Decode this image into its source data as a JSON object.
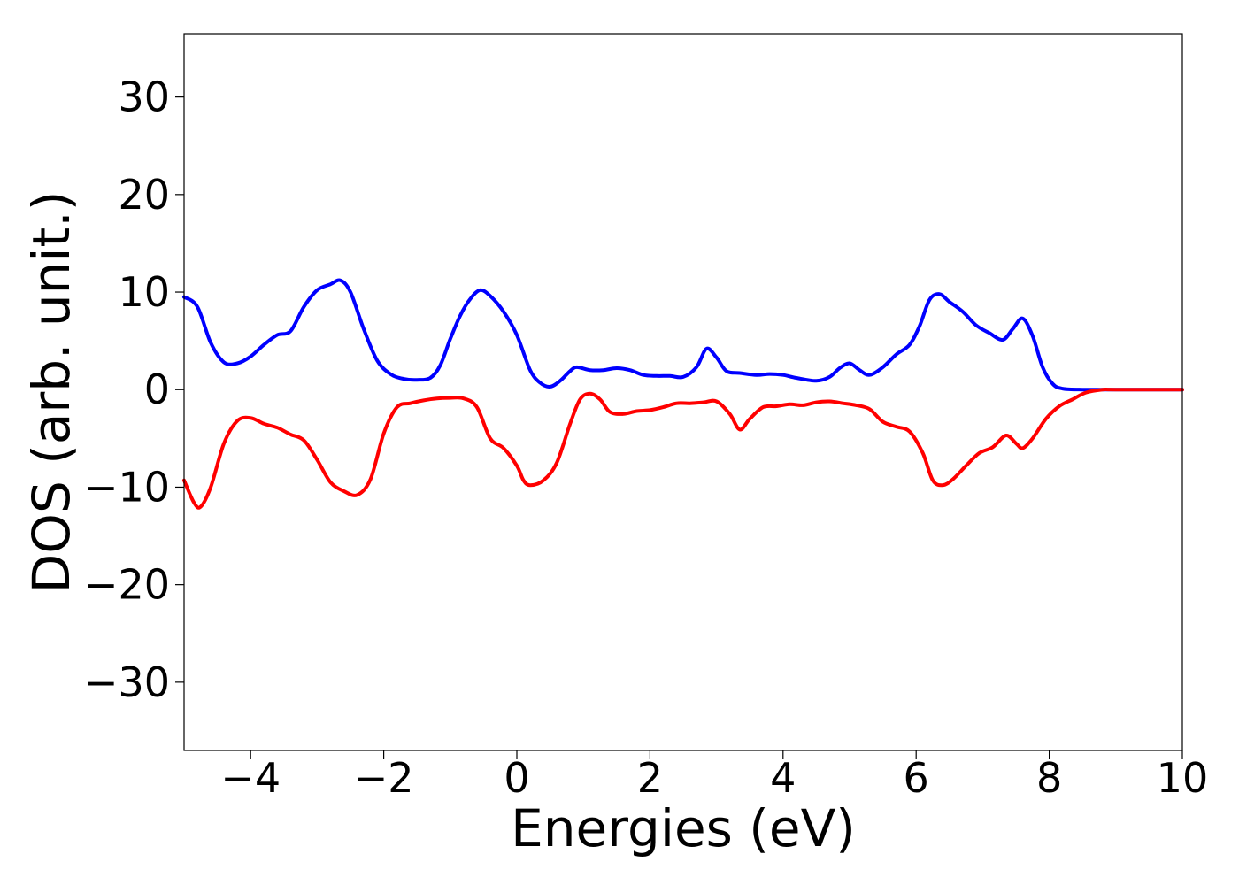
{
  "chart_data": {
    "type": "line",
    "title": "",
    "xlabel": "Energies (eV)",
    "ylabel": "DOS (arb. unit.)",
    "xlim": [
      -5,
      10
    ],
    "ylim": [
      -37,
      36.5
    ],
    "grid": false,
    "legend": "none",
    "x_ticks": [
      -4,
      -2,
      0,
      2,
      4,
      6,
      8,
      10
    ],
    "x_tick_labels": [
      "−4",
      "−2",
      "0",
      "2",
      "4",
      "6",
      "8",
      "10"
    ],
    "y_ticks": [
      30,
      20,
      10,
      0,
      -10,
      -20,
      -30
    ],
    "y_tick_labels": [
      "30",
      "20",
      "10",
      "0",
      "−10",
      "−20",
      "−30"
    ],
    "series": [
      {
        "color": "#0000ff",
        "points": [
          [
            -5.0,
            9.5
          ],
          [
            -4.8,
            8.5
          ],
          [
            -4.6,
            4.8
          ],
          [
            -4.4,
            2.8
          ],
          [
            -4.2,
            2.7
          ],
          [
            -4.0,
            3.4
          ],
          [
            -3.8,
            4.6
          ],
          [
            -3.6,
            5.6
          ],
          [
            -3.4,
            6.0
          ],
          [
            -3.2,
            8.5
          ],
          [
            -3.0,
            10.2
          ],
          [
            -2.8,
            10.8
          ],
          [
            -2.65,
            11.2
          ],
          [
            -2.5,
            10.0
          ],
          [
            -2.3,
            6.2
          ],
          [
            -2.1,
            3.0
          ],
          [
            -1.9,
            1.6
          ],
          [
            -1.7,
            1.1
          ],
          [
            -1.5,
            1.0
          ],
          [
            -1.3,
            1.2
          ],
          [
            -1.15,
            2.5
          ],
          [
            -1.0,
            5.2
          ],
          [
            -0.85,
            7.6
          ],
          [
            -0.7,
            9.3
          ],
          [
            -0.55,
            10.2
          ],
          [
            -0.4,
            9.6
          ],
          [
            -0.2,
            8.0
          ],
          [
            0.0,
            5.6
          ],
          [
            0.2,
            2.0
          ],
          [
            0.35,
            0.7
          ],
          [
            0.5,
            0.3
          ],
          [
            0.65,
            0.9
          ],
          [
            0.8,
            1.9
          ],
          [
            0.9,
            2.3
          ],
          [
            1.1,
            2.0
          ],
          [
            1.3,
            2.0
          ],
          [
            1.5,
            2.2
          ],
          [
            1.7,
            2.0
          ],
          [
            1.9,
            1.5
          ],
          [
            2.1,
            1.4
          ],
          [
            2.3,
            1.4
          ],
          [
            2.5,
            1.3
          ],
          [
            2.7,
            2.3
          ],
          [
            2.85,
            4.2
          ],
          [
            3.0,
            3.3
          ],
          [
            3.15,
            1.9
          ],
          [
            3.35,
            1.7
          ],
          [
            3.6,
            1.5
          ],
          [
            3.8,
            1.6
          ],
          [
            4.0,
            1.5
          ],
          [
            4.2,
            1.2
          ],
          [
            4.5,
            0.9
          ],
          [
            4.7,
            1.3
          ],
          [
            4.85,
            2.2
          ],
          [
            5.0,
            2.7
          ],
          [
            5.15,
            2.0
          ],
          [
            5.3,
            1.5
          ],
          [
            5.5,
            2.3
          ],
          [
            5.7,
            3.6
          ],
          [
            5.9,
            4.6
          ],
          [
            6.05,
            6.5
          ],
          [
            6.2,
            9.2
          ],
          [
            6.35,
            9.8
          ],
          [
            6.5,
            9.0
          ],
          [
            6.7,
            8.0
          ],
          [
            6.9,
            6.6
          ],
          [
            7.1,
            5.8
          ],
          [
            7.3,
            5.1
          ],
          [
            7.45,
            6.2
          ],
          [
            7.6,
            7.3
          ],
          [
            7.75,
            5.5
          ],
          [
            7.9,
            2.3
          ],
          [
            8.05,
            0.6
          ],
          [
            8.2,
            0.1
          ],
          [
            8.5,
            0.0
          ],
          [
            9.0,
            0.0
          ],
          [
            10.0,
            0.0
          ]
        ]
      },
      {
        "color": "#ff0000",
        "points": [
          [
            -5.0,
            -9.3
          ],
          [
            -4.85,
            -11.6
          ],
          [
            -4.75,
            -12.0
          ],
          [
            -4.6,
            -10.0
          ],
          [
            -4.4,
            -5.5
          ],
          [
            -4.2,
            -3.2
          ],
          [
            -4.0,
            -2.9
          ],
          [
            -3.8,
            -3.5
          ],
          [
            -3.6,
            -3.9
          ],
          [
            -3.4,
            -4.6
          ],
          [
            -3.2,
            -5.2
          ],
          [
            -3.0,
            -7.2
          ],
          [
            -2.8,
            -9.5
          ],
          [
            -2.6,
            -10.4
          ],
          [
            -2.4,
            -10.8
          ],
          [
            -2.2,
            -9.2
          ],
          [
            -2.0,
            -4.5
          ],
          [
            -1.8,
            -1.8
          ],
          [
            -1.6,
            -1.4
          ],
          [
            -1.4,
            -1.1
          ],
          [
            -1.2,
            -0.9
          ],
          [
            -1.0,
            -0.85
          ],
          [
            -0.8,
            -0.9
          ],
          [
            -0.6,
            -1.8
          ],
          [
            -0.4,
            -5.0
          ],
          [
            -0.2,
            -6.0
          ],
          [
            0.0,
            -7.8
          ],
          [
            0.1,
            -9.3
          ],
          [
            0.2,
            -9.8
          ],
          [
            0.4,
            -9.3
          ],
          [
            0.6,
            -7.5
          ],
          [
            0.8,
            -3.5
          ],
          [
            0.95,
            -1.0
          ],
          [
            1.1,
            -0.4
          ],
          [
            1.25,
            -1.0
          ],
          [
            1.4,
            -2.3
          ],
          [
            1.6,
            -2.5
          ],
          [
            1.8,
            -2.2
          ],
          [
            2.0,
            -2.1
          ],
          [
            2.2,
            -1.8
          ],
          [
            2.4,
            -1.4
          ],
          [
            2.6,
            -1.4
          ],
          [
            2.8,
            -1.3
          ],
          [
            3.0,
            -1.2
          ],
          [
            3.2,
            -2.5
          ],
          [
            3.35,
            -4.1
          ],
          [
            3.5,
            -3.0
          ],
          [
            3.7,
            -1.8
          ],
          [
            3.9,
            -1.7
          ],
          [
            4.1,
            -1.5
          ],
          [
            4.3,
            -1.6
          ],
          [
            4.5,
            -1.3
          ],
          [
            4.7,
            -1.2
          ],
          [
            4.9,
            -1.4
          ],
          [
            5.1,
            -1.6
          ],
          [
            5.3,
            -2.0
          ],
          [
            5.5,
            -3.3
          ],
          [
            5.7,
            -3.8
          ],
          [
            5.9,
            -4.3
          ],
          [
            6.1,
            -6.5
          ],
          [
            6.25,
            -9.3
          ],
          [
            6.4,
            -9.8
          ],
          [
            6.55,
            -9.2
          ],
          [
            6.75,
            -7.8
          ],
          [
            6.95,
            -6.5
          ],
          [
            7.15,
            -5.9
          ],
          [
            7.35,
            -4.7
          ],
          [
            7.5,
            -5.5
          ],
          [
            7.6,
            -6.0
          ],
          [
            7.75,
            -5.0
          ],
          [
            7.95,
            -3.0
          ],
          [
            8.15,
            -1.7
          ],
          [
            8.35,
            -1.0
          ],
          [
            8.55,
            -0.3
          ],
          [
            8.8,
            0.0
          ],
          [
            9.0,
            0.0
          ],
          [
            10.0,
            0.0
          ]
        ]
      }
    ]
  }
}
